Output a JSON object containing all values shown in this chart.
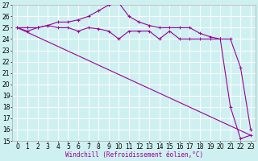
{
  "xlabel": "Windchill (Refroidissement éolien,°C)",
  "line1_x": [
    0,
    1,
    2,
    3,
    4,
    5,
    6,
    7,
    8,
    9,
    10,
    11,
    12,
    13,
    14,
    15,
    16,
    17,
    18,
    19,
    20,
    21,
    22,
    23
  ],
  "line1_y": [
    25.0,
    24.7,
    25.0,
    25.2,
    25.0,
    25.0,
    24.7,
    25.0,
    24.9,
    24.7,
    24.0,
    24.7,
    24.7,
    24.7,
    24.0,
    24.7,
    24.0,
    24.0,
    24.0,
    24.0,
    24.0,
    18.0,
    15.2,
    15.5
  ],
  "line2_x": [
    0,
    1,
    2,
    3,
    4,
    5,
    6,
    7,
    8,
    9,
    10,
    11,
    12,
    13,
    14,
    15,
    16,
    17,
    18,
    19,
    20,
    21,
    22,
    23
  ],
  "line2_y": [
    25.0,
    25.0,
    25.0,
    25.2,
    25.5,
    25.5,
    25.7,
    26.0,
    26.5,
    27.0,
    27.2,
    26.0,
    25.5,
    25.2,
    25.0,
    25.0,
    25.0,
    25.0,
    24.5,
    24.2,
    24.0,
    24.0,
    21.5,
    16.0
  ],
  "line3_x": [
    0,
    23
  ],
  "line3_y": [
    25.0,
    15.5
  ],
  "line_color": "#990099",
  "bg_color": "#cff0f0",
  "grid_color": "#ffffff",
  "ylim": [
    15,
    27
  ],
  "xlim": [
    -0.5,
    23.5
  ],
  "yticks": [
    15,
    16,
    17,
    18,
    19,
    20,
    21,
    22,
    23,
    24,
    25,
    26,
    27
  ],
  "xticks": [
    0,
    1,
    2,
    3,
    4,
    5,
    6,
    7,
    8,
    9,
    10,
    11,
    12,
    13,
    14,
    15,
    16,
    17,
    18,
    19,
    20,
    21,
    22,
    23
  ],
  "tick_fontsize": 5.5,
  "xlabel_fontsize": 5.5,
  "spine_color": "#aaaaaa",
  "marker_size": 2.5,
  "linewidth": 0.8
}
